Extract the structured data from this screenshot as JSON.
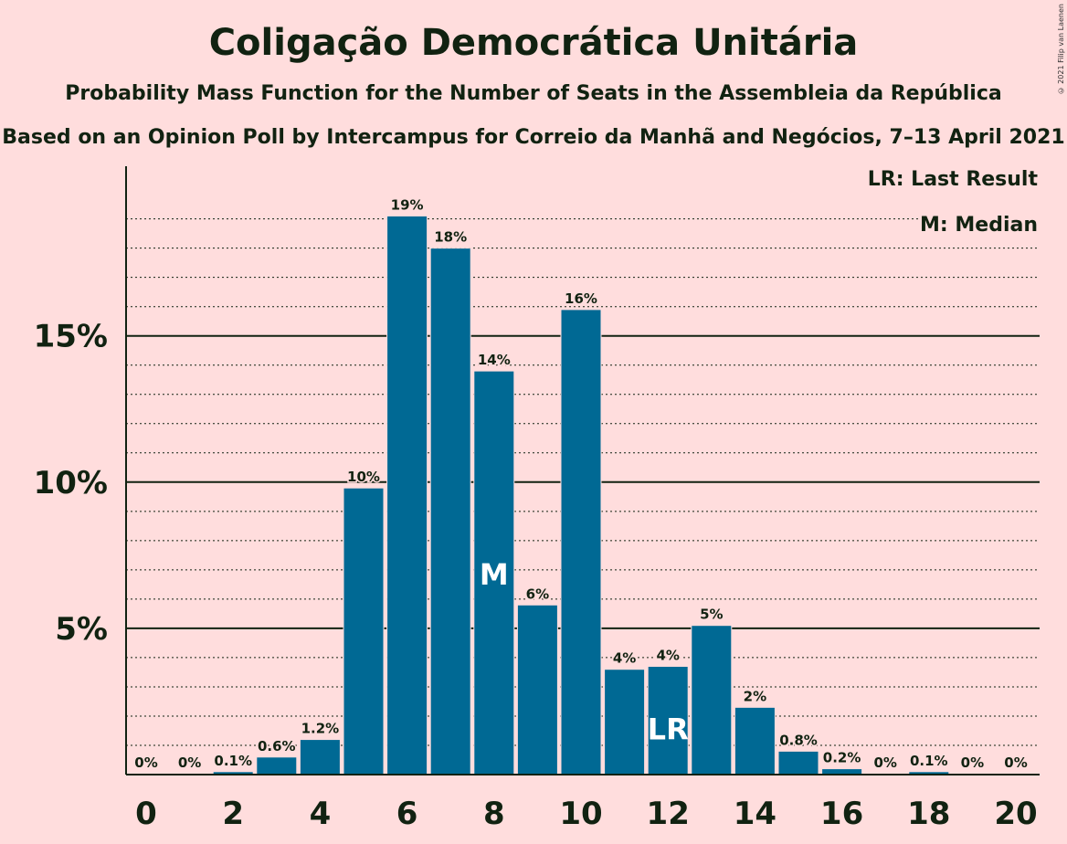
{
  "title": "Coligação Democrática Unitária",
  "subtitle": "Probability Mass Function for the Number of Seats in the Assembleia da República",
  "subtitle2": "Based on an Opinion Poll by Intercampus for Correio da Manhã and Negócios, 7–13 April 2021",
  "copyright": "© 2021 Filip van Laenen",
  "legend": {
    "last_result": "LR: Last Result",
    "median": "M: Median"
  },
  "colors": {
    "background": "#FFDDDD",
    "bar": "#006994",
    "text": "#112211"
  },
  "chart_data": {
    "type": "bar",
    "categories": [
      0,
      1,
      2,
      3,
      4,
      5,
      6,
      7,
      8,
      9,
      10,
      11,
      12,
      13,
      14,
      15,
      16,
      17,
      18,
      19,
      20
    ],
    "values": [
      0,
      0,
      0.1,
      0.6,
      1.2,
      9.8,
      19.1,
      18.0,
      13.8,
      5.8,
      15.9,
      3.6,
      3.7,
      5.1,
      2.3,
      0.8,
      0.2,
      0,
      0.1,
      0,
      0
    ],
    "data_labels": [
      "0%",
      "0%",
      "0.1%",
      "0.6%",
      "1.2%",
      "10%",
      "19%",
      "18%",
      "14%",
      "6%",
      "16%",
      "4%",
      "4%",
      "5%",
      "2%",
      "0.8%",
      "0.2%",
      "0%",
      "0.1%",
      "0%",
      "0%"
    ],
    "x_tick_labels": [
      "0",
      "2",
      "4",
      "6",
      "8",
      "10",
      "12",
      "14",
      "16",
      "18",
      "20"
    ],
    "y_tick_labels": [
      "5%",
      "10%",
      "15%"
    ],
    "y_ticks": [
      5,
      10,
      15
    ],
    "ylim": [
      0,
      20.8
    ],
    "median_seat": 8,
    "median_label": "M",
    "last_result_seat": 12,
    "last_result_label": "LR",
    "grid": true
  }
}
